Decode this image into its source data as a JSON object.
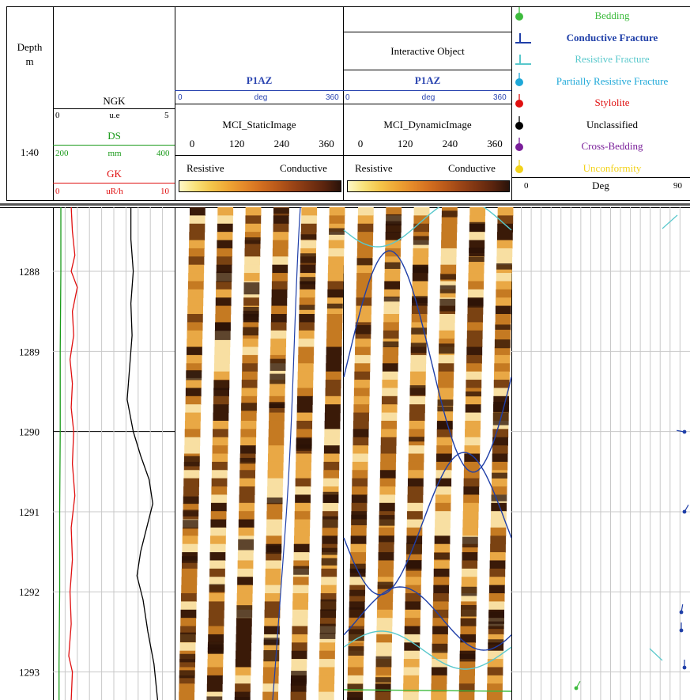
{
  "header": {
    "depth_title": "Depth",
    "depth_unit": "m",
    "scale_ratio": "1:40"
  },
  "curves_track": {
    "ngk": {
      "name": "NGK",
      "min": "0",
      "unit": "u.e",
      "max": "5",
      "color": "#000000"
    },
    "ds": {
      "name": "DS",
      "min": "200",
      "unit": "mm",
      "max": "400",
      "color": "#1a9a1a"
    },
    "gk": {
      "name": "GK",
      "min": "0",
      "unit": "uR/h",
      "max": "10",
      "color": "#e01010"
    }
  },
  "static_track": {
    "p1az": {
      "name": "P1AZ",
      "min": "0",
      "unit": "deg",
      "max": "360"
    },
    "image_name": "MCI_StaticImage",
    "az_ticks": [
      "0",
      "120",
      "240",
      "360"
    ],
    "left_label": "Resistive",
    "right_label": "Conductive"
  },
  "dynamic_track": {
    "title": "Interactive Object",
    "p1az": {
      "name": "P1AZ",
      "min": "0",
      "unit": "deg",
      "max": "360"
    },
    "image_name": "MCI_DynamicImage",
    "az_ticks": [
      "0",
      "120",
      "240",
      "360"
    ],
    "left_label": "Resistive",
    "right_label": "Conductive"
  },
  "legend": {
    "items": [
      {
        "label": "Bedding",
        "color": "#3dbb3d",
        "icon": "green-dip-tadpole-icon"
      },
      {
        "label": "Conductive Fracture",
        "color": "#1f3fa8",
        "icon": "conductive-fracture-icon"
      },
      {
        "label": "Resistive  Fracture",
        "color": "#59c8cc",
        "icon": "resistive-fracture-icon"
      },
      {
        "label": "Partially Resistive Fracture",
        "color": "#1ea8d8",
        "icon": "partially-resistive-tadpole-icon"
      },
      {
        "label": "Stylolite",
        "color": "#e01010",
        "icon": "stylolite-tadpole-icon"
      },
      {
        "label": "Unclassified",
        "color": "#000000",
        "icon": "unclassified-tadpole-icon"
      },
      {
        "label": "Cross-Bedding",
        "color": "#7a1f9a",
        "icon": "cross-bedding-tadpole-icon"
      },
      {
        "label": "Unconformity",
        "color": "#f2d21a",
        "icon": "unconformity-tadpole-icon"
      }
    ],
    "dip_scale": {
      "min": "0",
      "unit": "Deg",
      "max": "90"
    }
  },
  "chart_data": {
    "type": "line",
    "title": "",
    "depth_axis": {
      "label": "Depth m",
      "range": [
        1287.2,
        1293.35
      ],
      "ticks": [
        1288,
        1289,
        1290,
        1291,
        1292,
        1293
      ]
    },
    "series": [
      {
        "name": "NGK",
        "unit": "u.e",
        "scale": [
          0,
          5
        ],
        "color": "#000000",
        "depth": [
          1287.2,
          1287.6,
          1288.0,
          1288.4,
          1288.8,
          1289.2,
          1289.6,
          1290.0,
          1290.3,
          1290.6,
          1290.9,
          1291.2,
          1291.5,
          1291.8,
          1292.1,
          1292.5,
          1292.9,
          1293.35
        ],
        "values": [
          3.2,
          3.2,
          3.3,
          3.2,
          3.25,
          3.15,
          3.05,
          3.3,
          3.6,
          3.95,
          4.1,
          3.85,
          3.6,
          3.45,
          3.7,
          3.9,
          4.15,
          4.3
        ]
      },
      {
        "name": "DS",
        "unit": "mm",
        "scale": [
          200,
          400
        ],
        "color": "#1a9a1a",
        "depth": [
          1287.2,
          1288.0,
          1289.0,
          1290.0,
          1291.0,
          1292.0,
          1292.9,
          1293.35
        ],
        "values": [
          213,
          213,
          212,
          212,
          211,
          211,
          210,
          210
        ]
      },
      {
        "name": "GK",
        "unit": "uR/h",
        "scale": [
          0,
          10
        ],
        "color": "#e01010",
        "depth": [
          1287.2,
          1287.5,
          1287.8,
          1288.0,
          1288.2,
          1288.5,
          1288.8,
          1289.1,
          1289.4,
          1289.7,
          1290.0,
          1290.4,
          1290.8,
          1291.2,
          1291.6,
          1292.0,
          1292.4,
          1292.8,
          1293.0,
          1293.35
        ],
        "values": [
          1.5,
          1.6,
          1.8,
          1.5,
          2.0,
          1.6,
          1.7,
          1.4,
          1.6,
          1.5,
          1.7,
          1.6,
          1.8,
          1.5,
          1.6,
          1.4,
          1.5,
          1.3,
          1.6,
          1.5
        ]
      }
    ]
  }
}
